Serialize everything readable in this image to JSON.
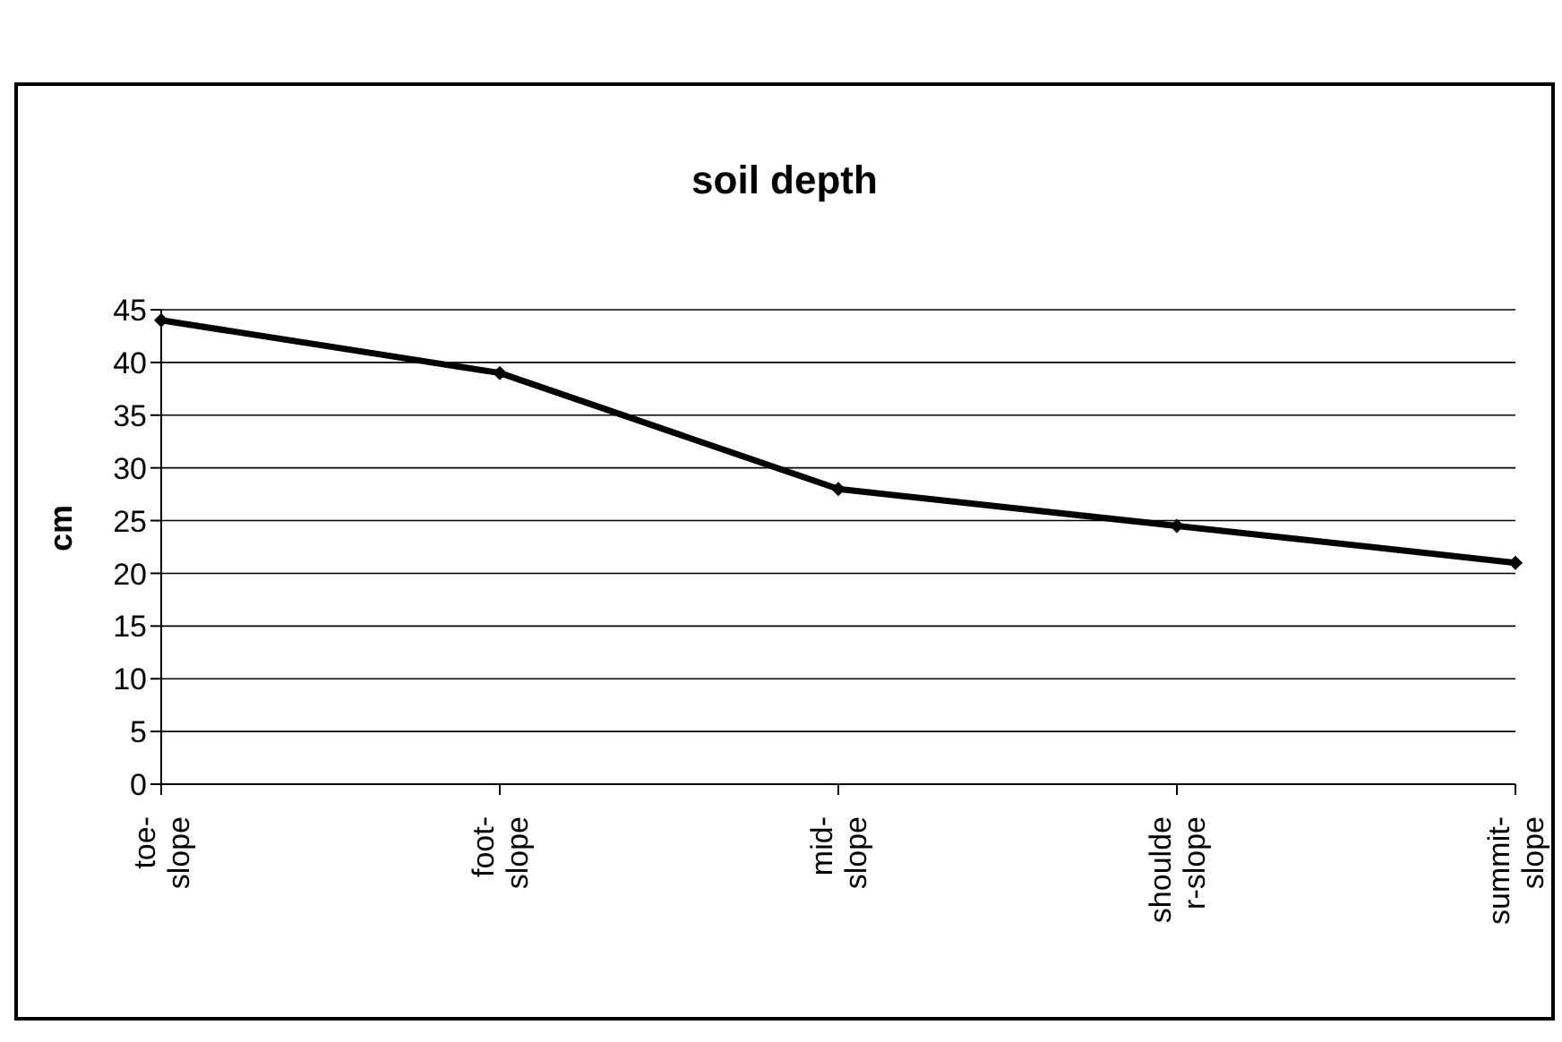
{
  "chart_data": {
    "type": "line",
    "title": "soil depth",
    "ylabel": "cm",
    "categories": [
      "toe-\nslope",
      "foot-\nslope",
      "mid-\nslope",
      "shoulde\nr-slope",
      "summit-\nslope"
    ],
    "series": [
      {
        "color": "#000000",
        "values": [
          44,
          39,
          28,
          24.5,
          21
        ]
      }
    ],
    "ylim": [
      0,
      45
    ],
    "yticks": [
      0,
      5,
      10,
      15,
      20,
      25,
      30,
      35,
      40,
      45
    ],
    "grid": "y",
    "legend": false,
    "marker": "diamond",
    "line_style": "solid"
  }
}
